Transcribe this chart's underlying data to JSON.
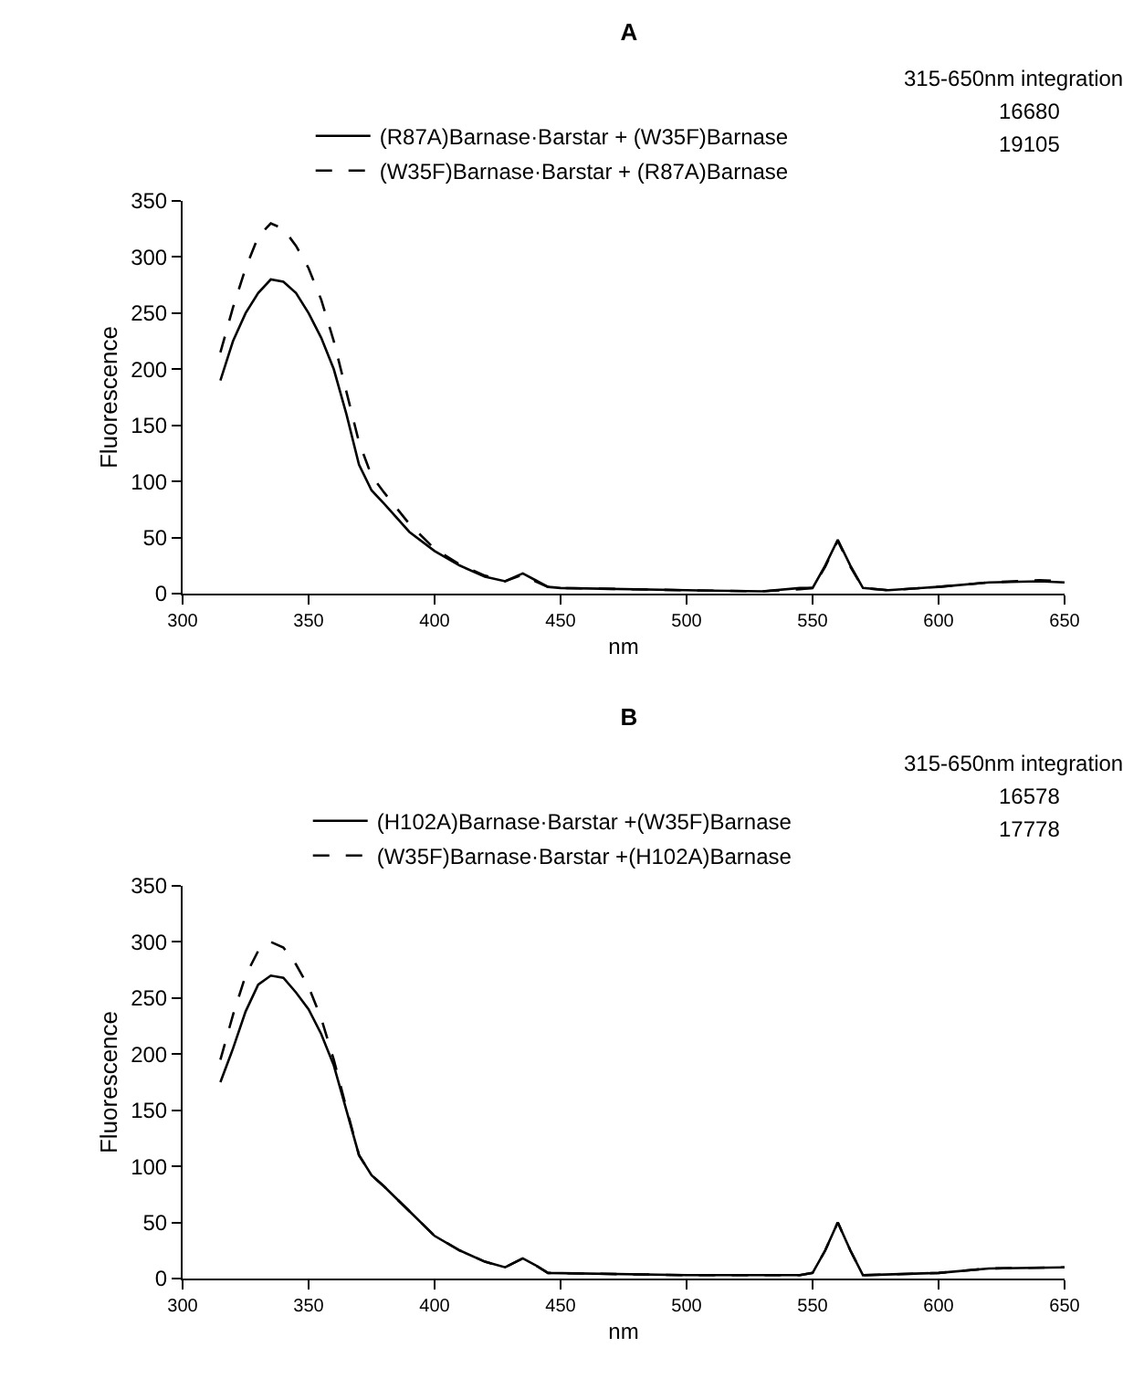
{
  "chart_data": [
    {
      "type": "line",
      "title": "A",
      "xlabel": "nm",
      "ylabel": "Fluorescence",
      "xlim": [
        300,
        650
      ],
      "xticks": [
        300,
        350,
        400,
        450,
        500,
        550,
        600,
        650
      ],
      "ylim": [
        0,
        350
      ],
      "yticks": [
        0,
        50,
        100,
        150,
        200,
        250,
        300,
        350
      ],
      "grid": false,
      "legend": "top",
      "marker": "none",
      "annotations": [
        "315-650nm integration",
        "16680",
        "19105"
      ],
      "series": [
        {
          "name": "(R87A)Barnase·Barstar + (W35F)Barnase",
          "color": "#000000",
          "line_style": "solid",
          "x": [
            315,
            320,
            325,
            330,
            335,
            340,
            345,
            350,
            355,
            360,
            365,
            370,
            375,
            380,
            390,
            400,
            410,
            420,
            428,
            435,
            440,
            445,
            450,
            500,
            530,
            545,
            550,
            555,
            560,
            565,
            570,
            580,
            600,
            620,
            640,
            650
          ],
          "values": [
            190,
            225,
            250,
            268,
            280,
            278,
            268,
            250,
            228,
            200,
            160,
            115,
            92,
            80,
            55,
            38,
            25,
            15,
            11,
            18,
            12,
            6,
            5,
            3,
            2,
            5,
            5,
            25,
            48,
            25,
            5,
            3,
            6,
            10,
            11,
            10
          ]
        },
        {
          "name": "(W35F)Barnase·Barstar + (R87A)Barnase",
          "color": "#000000",
          "line_style": "dashed",
          "x": [
            315,
            320,
            325,
            330,
            335,
            340,
            345,
            350,
            355,
            360,
            365,
            370,
            375,
            380,
            390,
            400,
            410,
            420,
            428,
            435,
            440,
            445,
            450,
            500,
            530,
            545,
            550,
            555,
            560,
            565,
            570,
            580,
            600,
            620,
            640,
            650
          ],
          "values": [
            215,
            255,
            290,
            318,
            330,
            325,
            310,
            290,
            262,
            225,
            180,
            135,
            105,
            90,
            62,
            40,
            26,
            16,
            11,
            17,
            11,
            6,
            5,
            3,
            2,
            4,
            5,
            24,
            47,
            24,
            5,
            3,
            6,
            10,
            12,
            11
          ]
        }
      ]
    },
    {
      "type": "line",
      "title": "B",
      "xlabel": "nm",
      "ylabel": "Fluorescence",
      "xlim": [
        300,
        650
      ],
      "xticks": [
        300,
        350,
        400,
        450,
        500,
        550,
        600,
        650
      ],
      "ylim": [
        0,
        350
      ],
      "yticks": [
        0,
        50,
        100,
        150,
        200,
        250,
        300,
        350
      ],
      "grid": false,
      "legend": "top",
      "marker": "none",
      "annotations": [
        "315-650nm integration",
        "16578",
        "17778"
      ],
      "series": [
        {
          "name": "(H102A)Barnase·Barstar +(W35F)Barnase",
          "color": "#000000",
          "line_style": "solid",
          "x": [
            315,
            320,
            325,
            330,
            335,
            340,
            345,
            350,
            355,
            360,
            365,
            370,
            375,
            380,
            390,
            400,
            410,
            420,
            428,
            435,
            440,
            445,
            500,
            545,
            550,
            555,
            560,
            565,
            570,
            600,
            620,
            650
          ],
          "values": [
            175,
            205,
            238,
            262,
            270,
            268,
            255,
            240,
            218,
            190,
            150,
            110,
            92,
            82,
            60,
            38,
            25,
            15,
            10,
            18,
            12,
            5,
            3,
            3,
            5,
            25,
            50,
            25,
            3,
            5,
            9,
            10
          ]
        },
        {
          "name": "(W35F)Barnase·Barstar +(H102A)Barnase",
          "color": "#000000",
          "line_style": "dashed",
          "x": [
            315,
            320,
            325,
            330,
            335,
            340,
            345,
            350,
            355,
            360,
            365,
            370,
            375,
            380,
            390,
            400,
            410,
            420,
            428,
            435,
            440,
            445,
            500,
            545,
            550,
            555,
            560,
            565,
            570,
            600,
            620,
            650
          ],
          "values": [
            195,
            235,
            270,
            292,
            300,
            295,
            280,
            260,
            232,
            195,
            152,
            110,
            92,
            82,
            60,
            38,
            25,
            15,
            10,
            18,
            12,
            5,
            3,
            3,
            5,
            25,
            50,
            25,
            3,
            5,
            9,
            10
          ]
        }
      ]
    }
  ]
}
